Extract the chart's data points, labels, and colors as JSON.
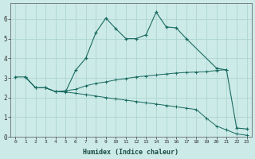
{
  "title": "",
  "xlabel": "Humidex (Indice chaleur)",
  "bg_color": "#cceae7",
  "grid_color": "#aed6d2",
  "line_color": "#1a6b62",
  "xlim": [
    -0.5,
    23.5
  ],
  "ylim": [
    0,
    6.8
  ],
  "yticks": [
    0,
    1,
    2,
    3,
    4,
    5,
    6
  ],
  "xticks": [
    0,
    1,
    2,
    3,
    4,
    5,
    6,
    7,
    8,
    9,
    10,
    11,
    12,
    13,
    14,
    15,
    16,
    17,
    18,
    19,
    20,
    21,
    22,
    23
  ],
  "line1_x": [
    0,
    1,
    2,
    3,
    4,
    5,
    6,
    7,
    8,
    9,
    10,
    11,
    12,
    13,
    14,
    15,
    16,
    17,
    20,
    21,
    22,
    23
  ],
  "line1_y": [
    3.05,
    3.05,
    2.5,
    2.5,
    2.3,
    2.3,
    3.4,
    4.0,
    5.3,
    6.05,
    5.5,
    5.0,
    5.0,
    5.2,
    6.35,
    5.6,
    5.55,
    5.0,
    3.5,
    3.4,
    0.45,
    0.4
  ],
  "line2_x": [
    1,
    2,
    3,
    4,
    5,
    6,
    7,
    8,
    9,
    10,
    11,
    12,
    13,
    14,
    15,
    16,
    17,
    18,
    19,
    20,
    21
  ],
  "line2_y": [
    3.05,
    2.5,
    2.5,
    2.3,
    2.35,
    2.42,
    2.6,
    2.72,
    2.8,
    2.9,
    2.97,
    3.05,
    3.1,
    3.15,
    3.2,
    3.25,
    3.28,
    3.3,
    3.32,
    3.38,
    3.42
  ],
  "line3_x": [
    1,
    2,
    3,
    4,
    5,
    6,
    7,
    8,
    9,
    10,
    11,
    12,
    13,
    14,
    15,
    16,
    17,
    18,
    19,
    20,
    21,
    22,
    23
  ],
  "line3_y": [
    3.05,
    2.5,
    2.5,
    2.3,
    2.28,
    2.22,
    2.15,
    2.08,
    2.0,
    1.93,
    1.87,
    1.8,
    1.73,
    1.67,
    1.6,
    1.53,
    1.46,
    1.39,
    0.95,
    0.55,
    0.35,
    0.15,
    0.08
  ]
}
